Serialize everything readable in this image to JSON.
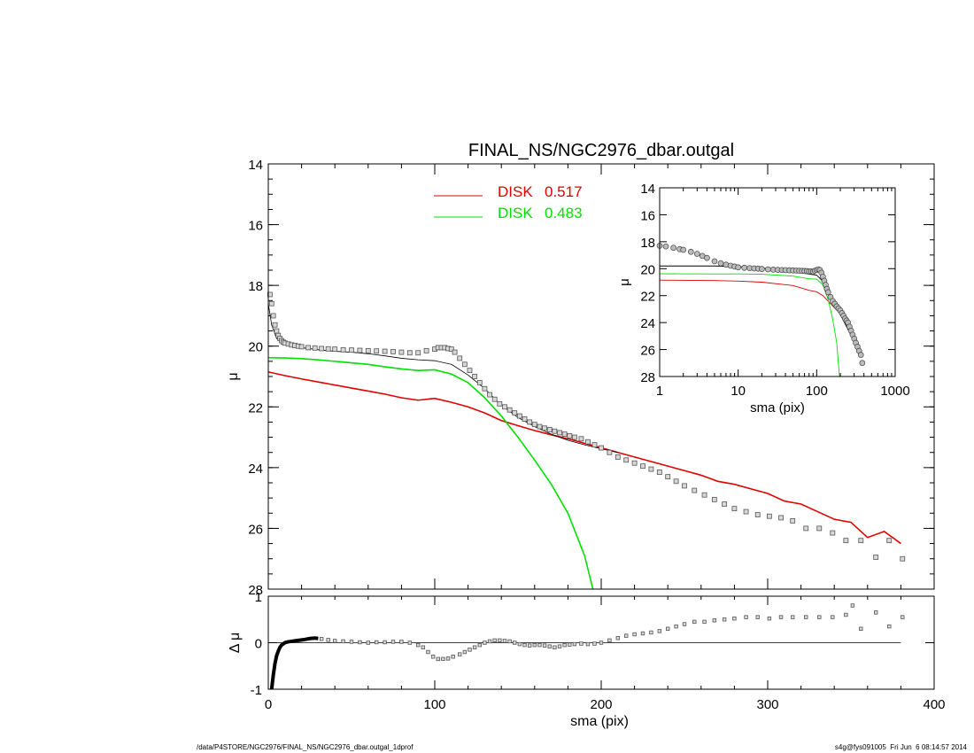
{
  "chart_data": [
    {
      "type": "line",
      "panel": "main",
      "title": "FINAL_NS/NGC2976_dbar.outgal",
      "xlabel": "",
      "ylabel": "μ",
      "xlim": [
        0,
        400
      ],
      "ylim": [
        28,
        14
      ],
      "y_inverted": true,
      "yticks": [
        14,
        16,
        18,
        20,
        22,
        24,
        26,
        28
      ],
      "legend_position": "top-center",
      "legend": [
        {
          "label": "DISK",
          "value": "0.517",
          "color": "#e00000"
        },
        {
          "label": "DISK",
          "value": "0.483",
          "color": "#00e000"
        }
      ],
      "series": [
        {
          "name": "DISK 0.517",
          "color": "#e00000",
          "style": "line",
          "x": [
            0,
            10,
            20,
            30,
            40,
            50,
            60,
            70,
            80,
            90,
            100,
            110,
            120,
            130,
            140,
            150,
            160,
            170,
            180,
            190,
            200,
            210,
            220,
            230,
            240,
            250,
            260,
            270,
            280,
            290,
            300,
            310,
            320,
            330,
            340,
            350,
            360,
            370,
            380
          ],
          "y": [
            20.85,
            20.97,
            21.08,
            21.18,
            21.28,
            21.38,
            21.48,
            21.58,
            21.7,
            21.78,
            21.72,
            21.85,
            22.0,
            22.2,
            22.45,
            22.62,
            22.78,
            22.92,
            23.05,
            23.2,
            23.35,
            23.5,
            23.65,
            23.8,
            23.95,
            24.1,
            24.25,
            24.45,
            24.55,
            24.7,
            24.85,
            25.1,
            25.2,
            25.45,
            25.7,
            25.8,
            26.3,
            26.1,
            26.5
          ]
        },
        {
          "name": "DISK 0.483",
          "color": "#00e000",
          "style": "line",
          "x": [
            0,
            10,
            20,
            30,
            40,
            50,
            60,
            70,
            80,
            90,
            100,
            110,
            120,
            130,
            140,
            150,
            160,
            170,
            180,
            190,
            195
          ],
          "y": [
            20.38,
            20.39,
            20.41,
            20.45,
            20.5,
            20.55,
            20.6,
            20.68,
            20.75,
            20.8,
            20.78,
            20.92,
            21.2,
            21.7,
            22.3,
            23.0,
            23.75,
            24.55,
            25.5,
            26.9,
            28.0
          ]
        },
        {
          "name": "model total",
          "color": "#000000",
          "style": "line",
          "x": [
            0,
            2,
            5,
            10,
            20,
            30,
            40,
            50,
            60,
            70,
            80,
            90,
            100,
            110,
            120,
            130,
            140,
            150,
            160,
            170,
            180,
            190,
            200,
            210
          ],
          "y": [
            18.6,
            19.3,
            19.75,
            19.92,
            20.05,
            20.12,
            20.17,
            20.2,
            20.25,
            20.32,
            20.4,
            20.45,
            20.48,
            20.6,
            20.95,
            21.4,
            21.95,
            22.35,
            22.65,
            22.9,
            23.1,
            23.25,
            23.38,
            23.5
          ]
        },
        {
          "name": "observed",
          "color": "#808080",
          "style": "squares",
          "x": [
            1,
            2,
            3,
            4,
            5,
            6,
            7,
            8,
            9,
            10,
            12,
            14,
            16,
            18,
            20,
            24,
            28,
            32,
            36,
            40,
            45,
            50,
            55,
            60,
            65,
            70,
            75,
            80,
            85,
            90,
            95,
            100,
            102,
            104,
            106,
            108,
            110,
            112,
            115,
            118,
            121,
            124,
            127,
            130,
            133,
            136,
            139,
            142,
            145,
            148,
            151,
            154,
            157,
            160,
            163,
            166,
            169,
            172,
            175,
            178,
            181,
            184,
            188,
            192,
            196,
            200,
            205,
            210,
            215,
            220,
            225,
            230,
            235,
            240,
            245,
            250,
            256,
            262,
            268,
            274,
            280,
            287,
            294,
            301,
            308,
            315,
            323,
            331,
            339,
            347,
            356,
            365,
            373,
            381
          ],
          "y": [
            18.3,
            18.6,
            19.0,
            19.3,
            19.5,
            19.65,
            19.75,
            19.82,
            19.87,
            19.9,
            19.93,
            19.96,
            19.98,
            20.0,
            20.02,
            20.05,
            20.06,
            20.08,
            20.09,
            20.1,
            20.12,
            20.13,
            20.14,
            20.15,
            20.16,
            20.17,
            20.18,
            20.2,
            20.22,
            20.22,
            20.15,
            20.1,
            20.05,
            20.05,
            20.05,
            20.08,
            20.1,
            20.2,
            20.4,
            20.6,
            20.8,
            21.0,
            21.2,
            21.4,
            21.6,
            21.75,
            21.9,
            22.0,
            22.1,
            22.2,
            22.3,
            22.4,
            22.5,
            22.58,
            22.65,
            22.7,
            22.75,
            22.8,
            22.85,
            22.9,
            22.95,
            23.0,
            23.05,
            23.15,
            23.25,
            23.35,
            23.5,
            23.65,
            23.75,
            23.85,
            23.95,
            24.05,
            24.15,
            24.3,
            24.45,
            24.6,
            24.75,
            24.9,
            25.05,
            25.2,
            25.35,
            25.45,
            25.55,
            25.6,
            25.65,
            25.75,
            26.0,
            26.0,
            26.15,
            26.4,
            26.4,
            26.95,
            26.4,
            27.0
          ]
        }
      ]
    },
    {
      "type": "scatter",
      "panel": "residual",
      "xlabel": "sma (pix)",
      "ylabel": "Δ μ",
      "xlim": [
        0,
        400
      ],
      "ylim": [
        -1,
        1
      ],
      "xticks": [
        0,
        100,
        200,
        300,
        400
      ],
      "yticks": [
        -1,
        0,
        1
      ],
      "series": [
        {
          "name": "residual inner",
          "color": "#000000",
          "style": "thick-line",
          "x": [
            2,
            3,
            4,
            5,
            6,
            7,
            8,
            10,
            12,
            14,
            16,
            18,
            20,
            22,
            25,
            28,
            30
          ],
          "y": [
            -1.0,
            -0.7,
            -0.45,
            -0.28,
            -0.18,
            -0.1,
            -0.05,
            0.0,
            0.02,
            0.03,
            0.04,
            0.05,
            0.06,
            0.07,
            0.09,
            0.1,
            0.09
          ]
        },
        {
          "name": "residual",
          "color": "#808080",
          "style": "squares",
          "x": [
            32,
            36,
            40,
            45,
            50,
            55,
            60,
            65,
            70,
            75,
            80,
            85,
            90,
            93,
            96,
            99,
            102,
            105,
            108,
            111,
            115,
            118,
            121,
            124,
            127,
            130,
            133,
            136,
            139,
            142,
            145,
            148,
            151,
            154,
            157,
            160,
            163,
            166,
            169,
            172,
            175,
            178,
            181,
            184,
            188,
            192,
            196,
            200,
            205,
            210,
            215,
            220,
            225,
            230,
            235,
            240,
            245,
            250,
            256,
            262,
            268,
            274,
            280,
            287,
            294,
            301,
            308,
            315,
            323,
            331,
            339,
            347,
            351,
            356,
            365,
            373,
            381
          ],
          "y": [
            0.08,
            0.06,
            0.04,
            0.03,
            0.02,
            0.01,
            0.0,
            0.01,
            0.01,
            0.02,
            0.02,
            0.0,
            -0.05,
            -0.1,
            -0.2,
            -0.3,
            -0.35,
            -0.35,
            -0.34,
            -0.3,
            -0.25,
            -0.2,
            -0.15,
            -0.1,
            -0.05,
            0.0,
            0.03,
            0.05,
            0.05,
            0.04,
            0.03,
            0.0,
            -0.03,
            -0.05,
            -0.06,
            -0.05,
            -0.05,
            -0.06,
            -0.08,
            -0.1,
            -0.08,
            -0.05,
            -0.04,
            -0.03,
            -0.02,
            -0.03,
            -0.02,
            0.0,
            0.05,
            0.1,
            0.15,
            0.18,
            0.2,
            0.22,
            0.25,
            0.3,
            0.35,
            0.4,
            0.45,
            0.45,
            0.48,
            0.5,
            0.52,
            0.55,
            0.55,
            0.52,
            0.55,
            0.55,
            0.55,
            0.55,
            0.55,
            0.6,
            0.8,
            0.3,
            0.65,
            0.35,
            0.55
          ]
        }
      ]
    },
    {
      "type": "line",
      "panel": "inset",
      "xlabel": "sma (pix)",
      "ylabel": "μ",
      "xscale": "log",
      "xlim": [
        1,
        1000
      ],
      "ylim": [
        28,
        14
      ],
      "y_inverted": true,
      "xticks": [
        1,
        10,
        100,
        1000
      ],
      "yticks": [
        14,
        16,
        18,
        20,
        22,
        24,
        26,
        28
      ],
      "series": [
        {
          "name": "DISK 0.517",
          "color": "#e00000",
          "style": "line",
          "x": [
            1,
            5,
            10,
            20,
            50,
            80,
            100,
            120,
            150,
            200,
            250,
            300,
            350,
            380
          ],
          "y": [
            20.85,
            20.88,
            20.92,
            21.0,
            21.25,
            21.6,
            21.72,
            22.0,
            22.6,
            23.35,
            24.1,
            24.85,
            25.8,
            26.5
          ]
        },
        {
          "name": "DISK 0.483",
          "color": "#00e000",
          "style": "line",
          "x": [
            1,
            5,
            10,
            20,
            50,
            80,
            100,
            120,
            140,
            160,
            180,
            195
          ],
          "y": [
            20.38,
            20.39,
            20.39,
            20.41,
            20.55,
            20.75,
            20.78,
            21.2,
            22.3,
            23.75,
            25.5,
            28.0
          ]
        },
        {
          "name": "model total",
          "color": "#000000",
          "style": "line",
          "x": [
            1,
            5,
            10,
            20,
            50,
            80,
            100,
            120,
            150,
            200,
            250,
            300,
            380
          ],
          "y": [
            19.8,
            19.8,
            19.85,
            19.95,
            20.2,
            20.4,
            20.48,
            20.95,
            22.35,
            23.4,
            24.5,
            25.4,
            26.4
          ]
        },
        {
          "name": "observed",
          "color": "#808080",
          "style": "circles",
          "x": [
            1,
            1.2,
            1.5,
            1.8,
            2,
            2.5,
            3,
            3.5,
            4,
            5,
            6,
            7,
            8,
            9,
            10,
            12,
            14,
            16,
            18,
            20,
            24,
            28,
            32,
            36,
            40,
            45,
            50,
            55,
            60,
            65,
            70,
            75,
            80,
            85,
            90,
            95,
            100,
            105,
            110,
            115,
            120,
            125,
            130,
            135,
            140,
            150,
            160,
            170,
            180,
            190,
            200,
            210,
            220,
            230,
            240,
            250,
            262,
            274,
            287,
            301,
            315,
            331,
            347,
            365,
            381
          ],
          "y": [
            18.3,
            18.35,
            18.45,
            18.55,
            18.6,
            18.75,
            18.9,
            19.05,
            19.2,
            19.45,
            19.6,
            19.7,
            19.78,
            19.84,
            19.9,
            19.93,
            19.96,
            19.98,
            20.0,
            20.02,
            20.05,
            20.07,
            20.09,
            20.1,
            20.11,
            20.12,
            20.13,
            20.14,
            20.15,
            20.16,
            20.17,
            20.18,
            20.2,
            20.2,
            20.22,
            20.15,
            20.1,
            20.05,
            20.1,
            20.3,
            20.6,
            20.9,
            21.2,
            21.5,
            21.75,
            22.1,
            22.4,
            22.6,
            22.8,
            22.95,
            23.1,
            23.3,
            23.5,
            23.7,
            23.85,
            24.0,
            24.3,
            24.6,
            24.9,
            25.2,
            25.5,
            25.8,
            26.1,
            26.4,
            27.0
          ]
        }
      ]
    }
  ],
  "footer": {
    "left": "/data/P4STORE/NGC2976/FINAL_NS/NGC2976_dbar.outgal_1dprof",
    "right": "s4g@fys091005  Fri Jun  6 08:14:57 2014"
  }
}
